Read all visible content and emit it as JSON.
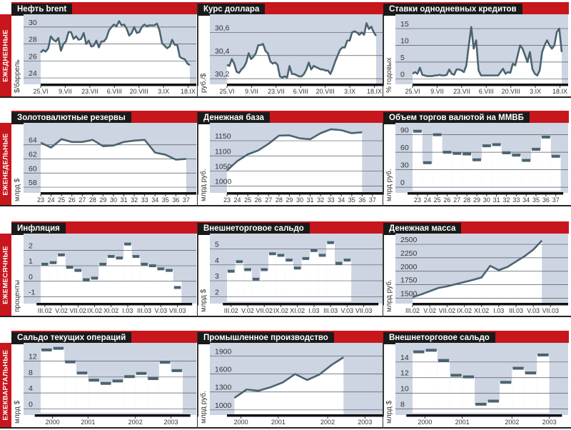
{
  "row_labels": [
    "ЕЖЕДНЕВНЫЕ",
    "ЕЖЕНЕДЕЛЬНЫЕ",
    "ЕЖЕМЕСЯЧНЫЕ",
    "ЕЖЕКВАРТАЛЬНЫЕ"
  ],
  "colors": {
    "red": "#c8161d",
    "plot_bg": "#cdd4e2",
    "line": "#4a6470",
    "header_label": "#1a1a1a"
  },
  "chart_data": [
    {
      "type": "line",
      "title": "Нефть brent",
      "ylabel": "$/баррель",
      "ylim": [
        23.5,
        31
      ],
      "yticks": [
        24,
        26,
        28,
        30
      ],
      "ytick_labels": [
        "24",
        "26",
        "28",
        "30"
      ],
      "xdomain": [
        0,
        85
      ],
      "x_start": 0,
      "x_end": 85,
      "xticks": [
        0,
        14,
        28,
        42,
        56,
        70,
        84
      ],
      "xtick_labels": [
        "25.VI",
        "9.VII",
        "23.VII",
        "6.VIII",
        "20.VIII",
        "3.IX",
        "18.IX"
      ],
      "values": [
        27,
        27.3,
        27.1,
        27.5,
        28.9,
        28.5,
        28.3,
        28.7,
        27.2,
        28,
        28.3,
        29.4,
        29.4,
        28.6,
        28.9,
        28.5,
        28.6,
        29.3,
        28,
        28.4,
        27.7,
        27.8,
        28.4,
        27.6,
        28.3,
        28.3,
        28.7,
        29.6,
        30,
        30.3,
        30.1,
        30.7,
        30.2,
        30.3,
        29.8,
        29,
        29.3,
        30,
        29.3,
        29.4,
        30,
        30.3,
        30.1,
        30.2,
        30.2,
        30.2,
        30.4,
        29.6,
        28.1,
        27.8,
        27.5,
        27.7,
        28.5,
        27.9,
        27.9,
        26.5,
        26.3,
        26.2,
        25.7,
        25.5
      ]
    },
    {
      "type": "line",
      "title": "Курс доллара",
      "ylabel": "руб./$",
      "ylim": [
        30.17,
        30.72
      ],
      "yticks": [
        30.2,
        30.4,
        30.6
      ],
      "ytick_labels": [
        "30,2",
        "30,4",
        "30,6"
      ],
      "xdomain": [
        0,
        85
      ],
      "x_start": 0,
      "x_end": 85,
      "xticks": [
        0,
        14,
        28,
        42,
        56,
        70,
        84
      ],
      "xtick_labels": [
        "25.VI",
        "9.VII",
        "23.VII",
        "6.VIII",
        "20.VIII",
        "3.IX",
        "18.IX"
      ],
      "values": [
        30.32,
        30.31,
        30.37,
        30.33,
        30.26,
        30.25,
        30.28,
        30.3,
        30.34,
        30.42,
        30.37,
        30.39,
        30.42,
        30.49,
        30.49,
        30.5,
        30.44,
        30.42,
        30.35,
        30.33,
        30.34,
        30.32,
        30.22,
        30.21,
        30.22,
        30.21,
        30.31,
        30.24,
        30.24,
        30.23,
        30.22,
        30.22,
        30.24,
        30.28,
        30.34,
        30.28,
        30.31,
        30.3,
        30.29,
        30.28,
        30.28,
        30.27,
        30.27,
        30.24,
        30.29,
        30.35,
        30.4,
        30.45,
        30.47,
        30.47,
        30.53,
        30.53,
        30.6,
        30.61,
        30.6,
        30.58,
        30.6,
        30.58,
        30.68,
        30.63,
        30.65,
        30.6,
        30.57
      ]
    },
    {
      "type": "line",
      "title": "Ставки однодневных кредитов",
      "ylabel": "% годовых",
      "ylim": [
        -1,
        18
      ],
      "yticks": [
        0,
        5,
        10,
        15
      ],
      "ytick_labels": [
        "0",
        "5",
        "10",
        "15"
      ],
      "xdomain": [
        0,
        85
      ],
      "x_start": 0,
      "x_end": 85,
      "xticks": [
        0,
        14,
        28,
        42,
        56,
        70,
        84
      ],
      "xtick_labels": [
        "25.VI",
        "9.VII",
        "23.VII",
        "6.VIII",
        "20.VIII",
        "3.IX",
        "18.IX"
      ],
      "values": [
        1.5,
        2,
        1.5,
        3.3,
        1.2,
        1,
        0.8,
        0.8,
        0.8,
        1,
        1,
        1.2,
        1,
        1,
        1.2,
        2.8,
        1.5,
        1.2,
        2.8,
        2.8,
        2.5,
        2,
        4,
        10,
        15.5,
        9,
        11.5,
        2.5,
        1,
        1,
        1,
        1,
        1,
        1,
        1,
        1,
        2,
        3,
        1.5,
        2,
        1.8,
        4.5,
        4,
        7,
        10,
        9,
        7,
        5,
        8,
        3,
        1.5,
        1,
        2.5,
        8,
        10,
        11.5,
        10,
        9,
        10,
        14,
        15,
        8
      ]
    },
    {
      "type": "line",
      "title": "Золотовалютные резервы",
      "ylabel": "млрд $",
      "ylim": [
        57.5,
        66.5
      ],
      "yticks": [
        58,
        60,
        62,
        64
      ],
      "ytick_labels": [
        "58",
        "60",
        "62",
        "64"
      ],
      "xdomain": [
        23,
        37.35
      ],
      "x_start": 23,
      "x_end": 37,
      "xticks": [
        23,
        24,
        25,
        26,
        27,
        28,
        29,
        30,
        31,
        32,
        33,
        34,
        35,
        36,
        37
      ],
      "xtick_labels": [
        "23",
        "24",
        "25",
        "26",
        "27",
        "28",
        "29",
        "30",
        "31",
        "32",
        "33",
        "34",
        "35",
        "36",
        "37"
      ],
      "values": [
        64.3,
        63.6,
        64.8,
        64.4,
        64.4,
        64.7,
        63.8,
        63.9,
        64.4,
        64.6,
        64.7,
        62.9,
        62.6,
        61.9,
        62.0
      ]
    },
    {
      "type": "line",
      "title": "Денежная база",
      "ylabel": "млрд руб.",
      "ylim": [
        985,
        1195
      ],
      "yticks": [
        1000,
        1050,
        1100,
        1150
      ],
      "ytick_labels": [
        "1000",
        "1050",
        "1100",
        "1150"
      ],
      "xdomain": [
        23,
        37.35
      ],
      "x_start": 23,
      "x_end": 36,
      "xticks": [
        23,
        24,
        25,
        26,
        27,
        28,
        29,
        30,
        31,
        32,
        33,
        34,
        35,
        36,
        37
      ],
      "xtick_labels": [
        "23",
        "24",
        "25",
        "26",
        "27",
        "28",
        "29",
        "30",
        "31",
        "32",
        "33",
        "34",
        "35",
        "36",
        "37"
      ],
      "values": [
        1052,
        1083,
        1105,
        1118,
        1140,
        1167,
        1168,
        1158,
        1155,
        1175,
        1188,
        1185,
        1175,
        1178
      ]
    },
    {
      "type": "step",
      "title": "Объем торгов валютой на ММВБ",
      "ylabel": "млрд руб.",
      "ylim": [
        -6,
        103
      ],
      "bar_base": -6,
      "yticks": [
        0,
        30,
        60,
        90
      ],
      "ytick_labels": [
        "0",
        "30",
        "60",
        "90"
      ],
      "xdomain": [
        22.5,
        37.6
      ],
      "x_start": 23,
      "x_step": 1,
      "xticks": [
        23,
        24,
        25,
        26,
        27,
        28,
        29,
        30,
        31,
        32,
        33,
        34,
        35,
        36,
        37
      ],
      "xtick_labels": [
        "23",
        "24",
        "25",
        "26",
        "27",
        "28",
        "29",
        "30",
        "31",
        "32",
        "33",
        "34",
        "35",
        "36",
        "37"
      ],
      "values": [
        96,
        42,
        90,
        60,
        58,
        57,
        47,
        71,
        73,
        59,
        55,
        46,
        65,
        86,
        53
      ]
    },
    {
      "type": "step",
      "title": "Инфляция",
      "ylabel": "проценты",
      "ylim": [
        -1.3,
        2.8
      ],
      "bar_base": 0,
      "yticks": [
        -1,
        0,
        1,
        2
      ],
      "ytick_labels": [
        "-1",
        "0",
        "1",
        "2"
      ],
      "xdomain": [
        -0.5,
        17.5
      ],
      "x_start": 0,
      "x_step": 1,
      "xticks": [
        0,
        2,
        4,
        6,
        8,
        10,
        12,
        14,
        16
      ],
      "xtick_labels": [
        "III.02",
        "V.02",
        "VII.02",
        "IX.02",
        "XI.02",
        "I.03",
        "III.03",
        "V.03",
        "VII.03"
      ],
      "values": [
        1.1,
        1.2,
        1.7,
        0.9,
        0.7,
        0.1,
        0.2,
        1.1,
        1.6,
        1.5,
        2.4,
        1.6,
        1.1,
        1.0,
        0.8,
        0.7,
        -0.4
      ]
    },
    {
      "type": "step",
      "title": "Внешнеторговое сальдо",
      "ylabel": "млрд $",
      "ylim": [
        1.7,
        5.7
      ],
      "bar_base": 1.7,
      "yticks": [
        2,
        3,
        4,
        5
      ],
      "ytick_labels": [
        "2",
        "3",
        "4",
        "5"
      ],
      "xdomain": [
        -0.5,
        17.5
      ],
      "x_start": 0,
      "x_step": 1,
      "xticks": [
        0,
        2,
        4,
        6,
        8,
        10,
        12,
        14,
        16
      ],
      "xtick_labels": [
        "III.02",
        "V.02",
        "VII.02",
        "IX.02",
        "XI.02",
        "I.03",
        "III.03",
        "V.03",
        "VII.03"
      ],
      "values": [
        3.6,
        4.2,
        3.7,
        3.1,
        3.7,
        4.7,
        4.6,
        4.3,
        3.8,
        4.4,
        4.9,
        4.6,
        5.4,
        4.1,
        4.3
      ]
    },
    {
      "type": "line",
      "title": "Денежная масса",
      "ylabel": "млрд руб.",
      "ylim": [
        1440,
        2620
      ],
      "yticks": [
        1500,
        1750,
        2000,
        2250,
        2500
      ],
      "ytick_labels": [
        "1500",
        "1750",
        "2000",
        "2250",
        "2500"
      ],
      "xdomain": [
        0,
        17.3
      ],
      "x_start": 0,
      "x_end": 15,
      "xticks": [
        0,
        2,
        4,
        6,
        8,
        10,
        12,
        14,
        16
      ],
      "xtick_labels": [
        "III.02",
        "V.02",
        "VII.02",
        "IX.02",
        "XI.02",
        "I.03",
        "III.03",
        "V.03",
        "VII.03"
      ],
      "values": [
        1520,
        1570,
        1630,
        1690,
        1720,
        1760,
        1800,
        1840,
        1885,
        2100,
        2020,
        2080,
        2180,
        2280,
        2400,
        2570
      ]
    },
    {
      "type": "step",
      "title": "Сальдо текущих операций",
      "ylabel": "млрд $",
      "ylim": [
        -1,
        15.5
      ],
      "bar_base": -1,
      "yticks": [
        0,
        4,
        8,
        12
      ],
      "ytick_labels": [
        "0",
        "4",
        "8",
        "12"
      ],
      "xdomain": [
        0,
        12.6
      ],
      "x_start": 0.5,
      "x_step": 1,
      "xticks": [
        1,
        4,
        8,
        11
      ],
      "xtick_labels": [
        "2000",
        "2001",
        "2002",
        "2003"
      ],
      "values": [
        14.8,
        15.2,
        11.8,
        9,
        7.2,
        6.4,
        7,
        8.1,
        8.9,
        7.6,
        11.7,
        9.6
      ]
    },
    {
      "type": "line",
      "title": "Промышленное производство",
      "ylabel": "млрд руб.",
      "ylim": [
        950,
        2050
      ],
      "yticks": [
        1000,
        1300,
        1600,
        1900
      ],
      "ytick_labels": [
        "1000",
        "1300",
        "1600",
        "1900"
      ],
      "xdomain": [
        0,
        16
      ],
      "x_start": 0.8,
      "x_end": 12.5,
      "xticks": [
        1.5,
        5.5,
        10.8,
        14.8
      ],
      "xtick_labels": [
        "2000",
        "2001",
        "2002",
        "2003"
      ],
      "values": [
        1200,
        1340,
        1320,
        1380,
        1460,
        1600,
        1500,
        1590,
        1750,
        1880
      ]
    },
    {
      "type": "step",
      "title": "Внешнеторговое сальдо",
      "ylabel": "млрд $",
      "ylim": [
        7.5,
        15.9
      ],
      "bar_base": 7.5,
      "yticks": [
        8,
        10,
        12,
        14
      ],
      "ytick_labels": [
        "8",
        "10",
        "12",
        "14"
      ],
      "xdomain": [
        0,
        12
      ],
      "x_start": 0.5,
      "x_step": 1,
      "xticks": [
        1,
        4,
        8,
        11
      ],
      "xtick_labels": [
        "2000",
        "2001",
        "2002",
        "2003"
      ],
      "values": [
        15.3,
        15.5,
        14.2,
        12.3,
        12.1,
        8.6,
        9,
        11.4,
        13.2,
        12.6,
        14.9
      ]
    }
  ]
}
